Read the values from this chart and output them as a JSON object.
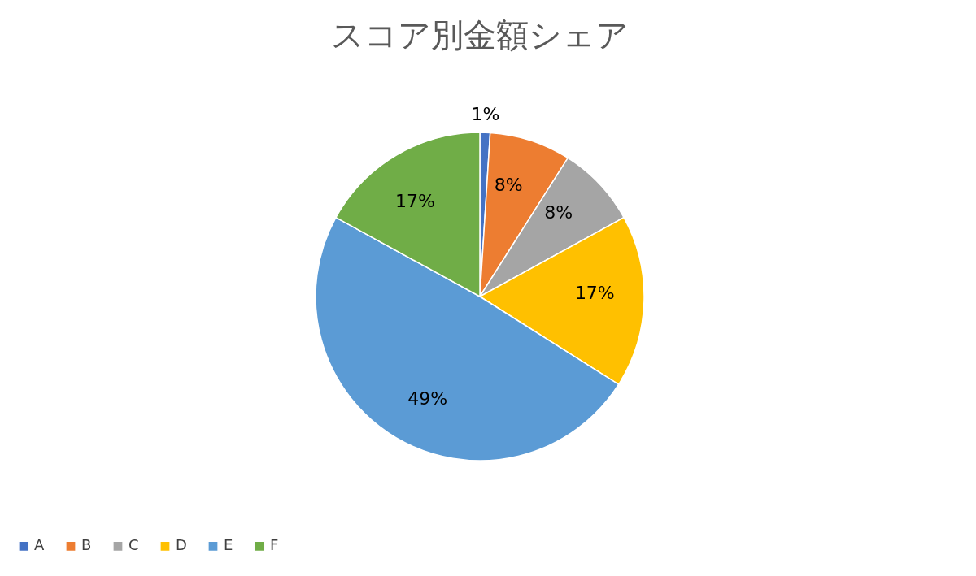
{
  "chart_data": {
    "type": "pie",
    "title": "スコア別金額シェア",
    "categories": [
      "A",
      "B",
      "C",
      "D",
      "E",
      "F"
    ],
    "values": [
      1,
      8,
      8,
      17,
      49,
      17
    ],
    "colors": [
      "#4472c4",
      "#ed7d31",
      "#a5a5a5",
      "#ffc000",
      "#5b9bd5",
      "#70ad47"
    ],
    "value_labels": [
      "1%",
      "8%",
      "8%",
      "17%",
      "49%",
      "17%"
    ],
    "legend": "bottom"
  }
}
